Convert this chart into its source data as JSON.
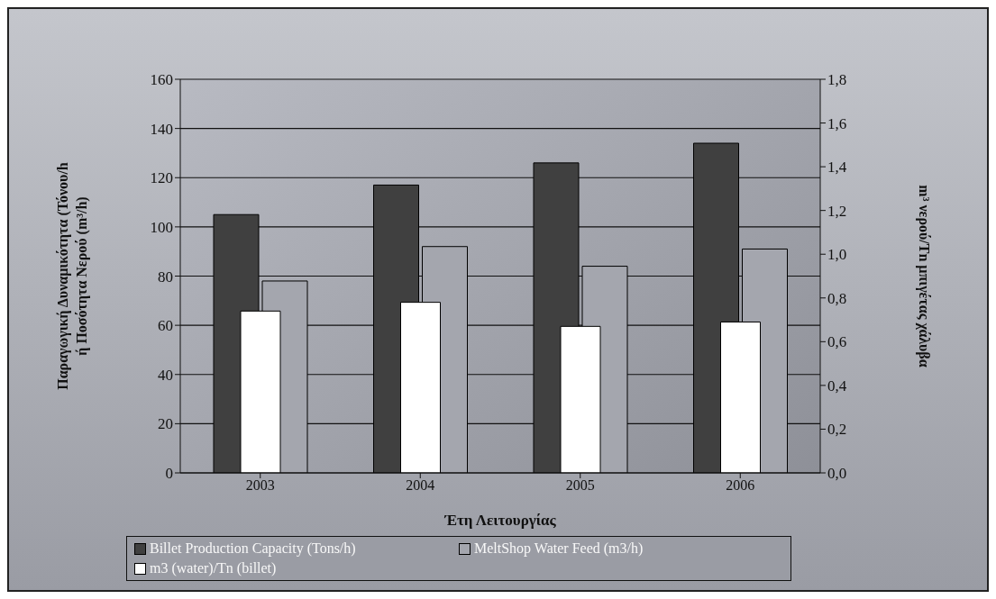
{
  "chart_data": {
    "type": "bar",
    "categories": [
      "2003",
      "2004",
      "2005",
      "2006"
    ],
    "series": [
      {
        "name": "Billet Production Capacity (Tons/h)",
        "color": "#404040",
        "values": [
          105,
          117,
          126,
          134
        ]
      },
      {
        "name": "MeltShop Water Feed (m3/h)",
        "color": "#a4a6ae",
        "values": [
          78,
          92,
          84,
          91
        ]
      },
      {
        "name": "m3 (water)/Tn (billet)",
        "color": "#ffffff",
        "values": [
          0.74,
          0.78,
          0.67,
          0.69
        ],
        "axis": "y2"
      }
    ],
    "xlabel": "Έτη Λειτουργίας",
    "ylabel": "Παραγωγική Δυναμικότητα (Τόνου/h\nή Ποσότητα Νερού (m³/h)",
    "y2label": "m³ νερού/Tn μπιγέτας χάλυβα",
    "ylim": [
      0,
      160
    ],
    "yticks": [
      0,
      20,
      40,
      60,
      80,
      100,
      120,
      140,
      160
    ],
    "y2lim": [
      0,
      1.8
    ],
    "y2ticks": [
      {
        "value": 0,
        "label": "0,0"
      },
      {
        "value": 0.2,
        "label": "0,2"
      },
      {
        "value": 0.4,
        "label": "0,4"
      },
      {
        "value": 0.6,
        "label": "0,6"
      },
      {
        "value": 0.8,
        "label": "0,8"
      },
      {
        "value": 1.0,
        "label": "1,0"
      },
      {
        "value": 1.2,
        "label": "1,2"
      },
      {
        "value": 1.4,
        "label": "1,4"
      },
      {
        "value": 1.6,
        "label": "1,6"
      },
      {
        "value": 1.8,
        "label": "1,8"
      }
    ],
    "grid": "y",
    "legend": "bottom"
  }
}
